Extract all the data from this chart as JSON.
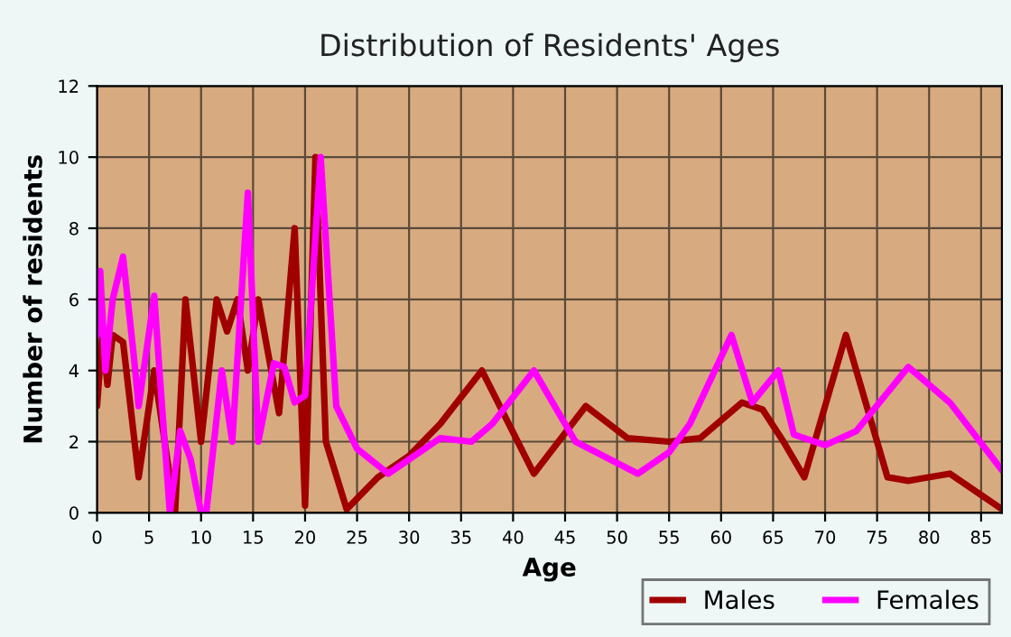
{
  "chart_data": {
    "type": "line",
    "title": "Distribution of Residents' Ages",
    "xlabel": "Age",
    "ylabel": "Number of residents",
    "xlim": [
      0,
      87
    ],
    "xticks": [
      0,
      5,
      10,
      15,
      20,
      25,
      30,
      35,
      40,
      45,
      50,
      55,
      60,
      65,
      70,
      75,
      80,
      85
    ],
    "ylim": [
      0,
      12
    ],
    "yticks": [
      0,
      2,
      4,
      6,
      8,
      10,
      12
    ],
    "grid": true,
    "legend": "bottom right",
    "line_style": "solid",
    "marker": "none",
    "series": [
      {
        "name": "Males",
        "color": "#a00000",
        "x": [
          0,
          0.5,
          1,
          1.5,
          2.5,
          4,
          5.5,
          7.5,
          8.5,
          10,
          11.5,
          12.5,
          13.5,
          14.5,
          15.5,
          17.5,
          19,
          20,
          21,
          22,
          24,
          27,
          30,
          33,
          37,
          42,
          47,
          51,
          55,
          58,
          62,
          64,
          66,
          68,
          72,
          76,
          78,
          82,
          87
        ],
        "values": [
          3,
          5,
          3.6,
          5,
          4.8,
          1,
          4,
          0,
          6,
          2,
          6,
          5.1,
          6,
          4,
          6,
          2.8,
          8,
          0.2,
          10,
          2,
          0.1,
          1,
          1.6,
          2.5,
          4,
          1.1,
          3,
          2.1,
          2,
          2.1,
          3.1,
          2.9,
          2,
          1,
          5,
          1,
          0.9,
          1.1,
          0.1
        ]
      },
      {
        "name": "Females",
        "color": "#ff00ff",
        "x": [
          0,
          0.3,
          0.8,
          1.5,
          2.5,
          3.5,
          4,
          5.5,
          6,
          7,
          8,
          9,
          10,
          10.5,
          12,
          13,
          14.5,
          15.5,
          17,
          18,
          19,
          20,
          21.5,
          23,
          25,
          28,
          30,
          33,
          36,
          38,
          42,
          46,
          52,
          55,
          57,
          61,
          63,
          65.5,
          67,
          70,
          73,
          78,
          82,
          87
        ],
        "values": [
          5,
          6.8,
          4,
          6,
          7.2,
          4.5,
          3,
          6.1,
          4,
          0,
          2.3,
          1.5,
          0,
          0,
          4,
          2,
          9,
          2,
          4.2,
          4.1,
          3.1,
          3.3,
          10,
          3,
          1.8,
          1.1,
          1.5,
          2.1,
          2,
          2.5,
          4,
          2,
          1.1,
          1.7,
          2.5,
          5,
          3.1,
          4,
          2.2,
          1.9,
          2.3,
          4.1,
          3.1,
          1.2
        ]
      }
    ]
  }
}
